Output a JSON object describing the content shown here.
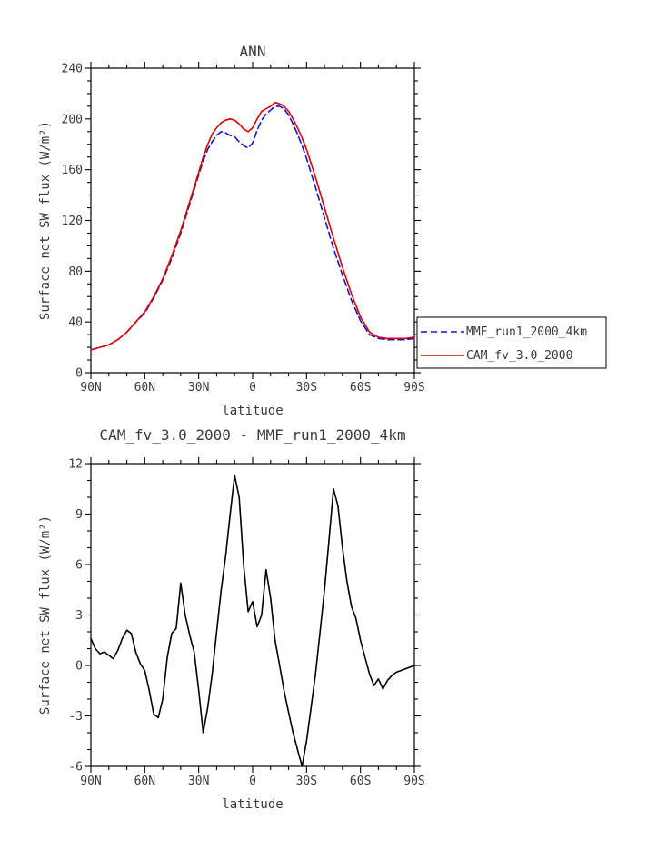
{
  "figure": {
    "background": "#ffffff",
    "text_color": "#3a3a3a",
    "axis_color": "#000000"
  },
  "chart_data": [
    {
      "type": "line",
      "title": "ANN",
      "xlabel": "latitude",
      "ylabel": "Surface net SW flux (W/m²)",
      "xlim": [
        90,
        -90
      ],
      "ylim": [
        0,
        240
      ],
      "grid": false,
      "legend_position": "outside-right-bottom",
      "xticks": {
        "values": [
          90,
          60,
          30,
          0,
          -30,
          -60,
          -90
        ],
        "labels": [
          "90N",
          "60N",
          "30N",
          "0",
          "30S",
          "60S",
          "90S"
        ],
        "minor": 10
      },
      "yticks": {
        "values": [
          0,
          40,
          80,
          120,
          160,
          200,
          240
        ],
        "labels": [
          "0",
          "40",
          "80",
          "120",
          "160",
          "200",
          "240"
        ],
        "minor": 10
      },
      "x": [
        90,
        85,
        80,
        75,
        70,
        65,
        60,
        55,
        50,
        45,
        40,
        35,
        30,
        27.5,
        25,
        22.5,
        20,
        17.5,
        15,
        12.5,
        10,
        7.5,
        5,
        2.5,
        0,
        -2.5,
        -5,
        -7.5,
        -10,
        -12.5,
        -15,
        -17.5,
        -20,
        -22.5,
        -25,
        -27.5,
        -30,
        -35,
        -40,
        -45,
        -50,
        -55,
        -60,
        -65,
        -70,
        -75,
        -80,
        -85,
        -90
      ],
      "series": [
        {
          "name": "MMF_run1_2000_4km",
          "color": "#1414c8",
          "dash": "7,4",
          "values": [
            18,
            20,
            22,
            26,
            32,
            40,
            47,
            59,
            73,
            90,
            110,
            133,
            156,
            167,
            176,
            182,
            187,
            190,
            189,
            187,
            186,
            182,
            179,
            177,
            181,
            191,
            199,
            204,
            207,
            210,
            210,
            208,
            203,
            196,
            188,
            179,
            169,
            146,
            122,
            98,
            77,
            57,
            41,
            30,
            27,
            26,
            26,
            26,
            27
          ]
        },
        {
          "name": "CAM_fv_3.0_2000",
          "color": "#e00000",
          "dash": "",
          "values": [
            18,
            20,
            22,
            26,
            32,
            40,
            48,
            60,
            74,
            92,
            112,
            135,
            158,
            170,
            180,
            188,
            193,
            197,
            199,
            200,
            199,
            196,
            192,
            190,
            193,
            200,
            206,
            208,
            210,
            213,
            212,
            210,
            206,
            200,
            193,
            185,
            176,
            154,
            130,
            106,
            83,
            62,
            44,
            32,
            28,
            27,
            27,
            27,
            28
          ]
        }
      ]
    },
    {
      "type": "line",
      "title": "CAM_fv_3.0_2000 - MMF_run1_2000_4km",
      "xlabel": "latitude",
      "ylabel": "Surface net SW flux (W/m²)",
      "xlim": [
        90,
        -90
      ],
      "ylim": [
        -6,
        12
      ],
      "grid": false,
      "xticks": {
        "values": [
          90,
          60,
          30,
          0,
          -30,
          -60,
          -90
        ],
        "labels": [
          "90N",
          "60N",
          "30N",
          "0",
          "30S",
          "60S",
          "90S"
        ],
        "minor": 10
      },
      "yticks": {
        "values": [
          -6,
          -3,
          0,
          3,
          6,
          9,
          12
        ],
        "labels": [
          "-6",
          "-3",
          "0",
          "3",
          "6",
          "9",
          "12"
        ],
        "minor": 1
      },
      "x": [
        90,
        87.5,
        85,
        82.5,
        80,
        77.5,
        75,
        72.5,
        70,
        67.5,
        65,
        62.5,
        60,
        57.5,
        55,
        52.5,
        50,
        47.5,
        45,
        42.5,
        40,
        37.5,
        35,
        32.5,
        30,
        27.5,
        25,
        22.5,
        20,
        17.5,
        15,
        12.5,
        10,
        7.5,
        5,
        2.5,
        0,
        -2.5,
        -5,
        -7.5,
        -10,
        -12.5,
        -15,
        -17.5,
        -20,
        -22.5,
        -25,
        -27.5,
        -30,
        -32.5,
        -35,
        -37.5,
        -40,
        -42.5,
        -45,
        -47.5,
        -50,
        -52.5,
        -55,
        -57.5,
        -60,
        -62.5,
        -65,
        -67.5,
        -70,
        -72.5,
        -75,
        -77.5,
        -80,
        -82.5,
        -85,
        -87.5,
        -90
      ],
      "series": [
        {
          "name": "CAM_fv_3.0_2000 - MMF_run1_2000_4km",
          "color": "#000000",
          "dash": "",
          "values": [
            1.6,
            1.0,
            0.7,
            0.8,
            0.6,
            0.4,
            0.9,
            1.6,
            2.1,
            1.9,
            0.8,
            0.1,
            -0.3,
            -1.5,
            -2.9,
            -3.1,
            -2.0,
            0.5,
            1.9,
            2.2,
            4.9,
            3.0,
            1.8,
            0.8,
            -1.5,
            -4.0,
            -2.5,
            -0.5,
            2.0,
            4.5,
            6.5,
            9.0,
            11.3,
            10.0,
            6.0,
            3.2,
            3.8,
            2.3,
            3.0,
            5.7,
            4.0,
            1.5,
            0.0,
            -1.5,
            -2.8,
            -4.0,
            -5.0,
            -6.0,
            -4.5,
            -2.5,
            -0.5,
            2.0,
            4.5,
            7.5,
            10.5,
            9.5,
            7.0,
            5.0,
            3.5,
            2.8,
            1.5,
            0.5,
            -0.5,
            -1.2,
            -0.8,
            -1.4,
            -0.9,
            -0.6,
            -0.4,
            -0.3,
            -0.2,
            -0.1,
            0.0
          ]
        }
      ]
    }
  ]
}
